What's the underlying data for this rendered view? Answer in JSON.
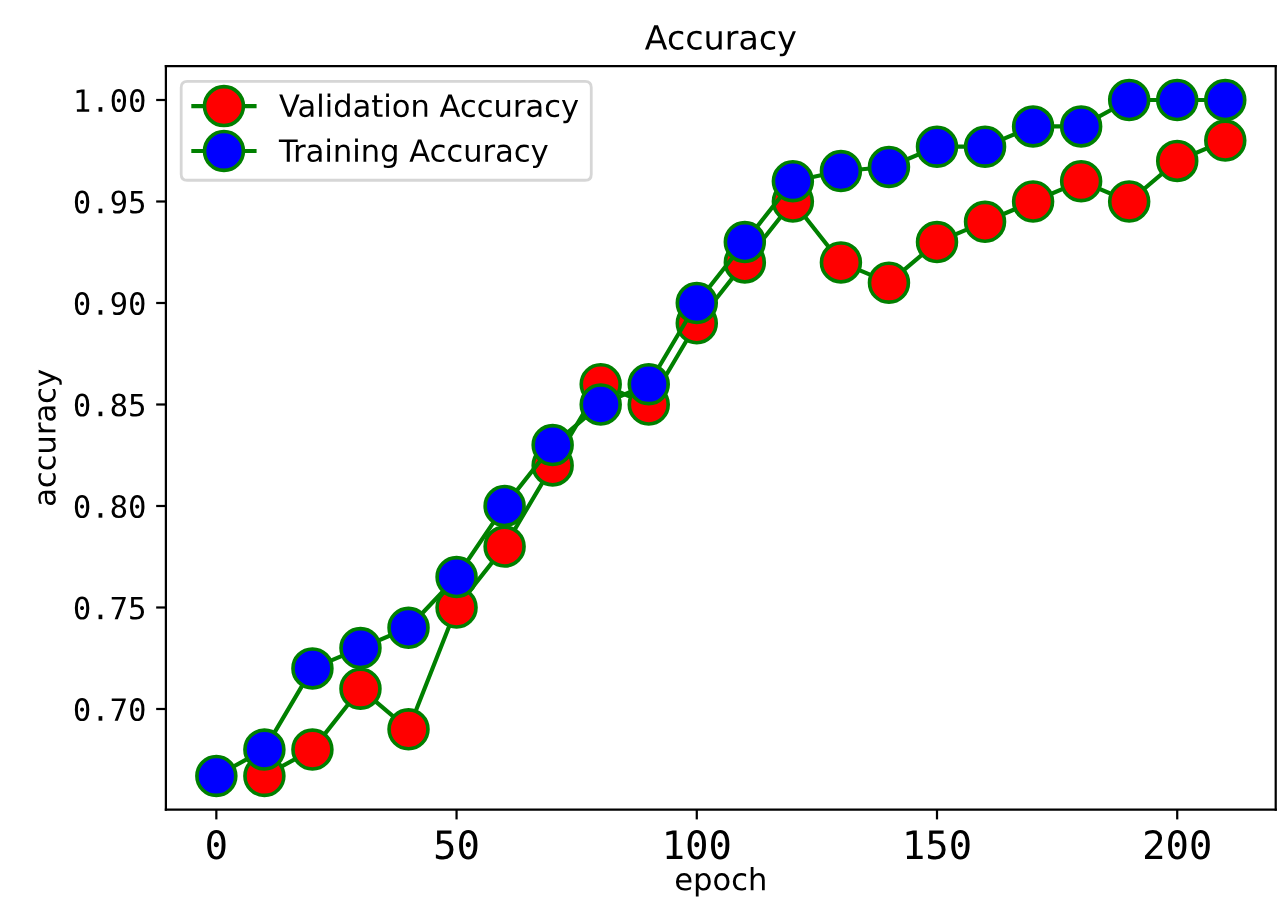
{
  "chart_data": {
    "type": "line",
    "title": "Accuracy",
    "xlabel": "epoch",
    "ylabel": "accuracy",
    "x": [
      0,
      10,
      20,
      30,
      40,
      50,
      60,
      70,
      80,
      90,
      100,
      110,
      120,
      130,
      140,
      150,
      160,
      170,
      180,
      190,
      200,
      210
    ],
    "series": [
      {
        "name": "Validation Accuracy",
        "color": "#ff0000",
        "values": [
          null,
          0.667,
          0.68,
          0.71,
          0.69,
          0.75,
          0.78,
          0.82,
          0.86,
          0.85,
          0.89,
          0.92,
          0.95,
          0.92,
          0.91,
          0.93,
          0.94,
          0.95,
          0.96,
          0.95,
          0.97,
          0.98
        ]
      },
      {
        "name": "Training Accuracy",
        "color": "#0000ff",
        "values": [
          0.667,
          0.68,
          0.72,
          0.73,
          0.74,
          0.765,
          0.8,
          0.83,
          0.85,
          0.86,
          0.9,
          0.93,
          0.96,
          0.965,
          0.967,
          0.977,
          0.977,
          0.987,
          0.987,
          1.0,
          1.0,
          1.0
        ]
      }
    ],
    "xlim": [
      -10.5,
      220.5
    ],
    "xticks": [
      0,
      50,
      100,
      150,
      200
    ],
    "ylim": [
      0.6504,
      1.0167
    ],
    "yticks": [
      {
        "value": 0.7,
        "label": "0.70"
      },
      {
        "value": 0.75,
        "label": "0.75"
      },
      {
        "value": 0.8,
        "label": "0.80"
      },
      {
        "value": 0.85,
        "label": "0.85"
      },
      {
        "value": 0.9,
        "label": "0.90"
      },
      {
        "value": 0.95,
        "label": "0.95"
      },
      {
        "value": 1.0,
        "label": "1.00"
      }
    ],
    "marker": "circle",
    "line_style": "solid",
    "grid": false,
    "legend": "top left"
  }
}
